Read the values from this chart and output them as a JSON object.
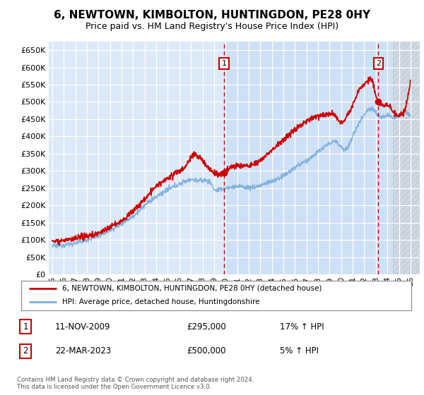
{
  "title": "6, NEWTOWN, KIMBOLTON, HUNTINGDON, PE28 0HY",
  "subtitle": "Price paid vs. HM Land Registry's House Price Index (HPI)",
  "ytick_values": [
    0,
    50000,
    100000,
    150000,
    200000,
    250000,
    300000,
    350000,
    400000,
    450000,
    500000,
    550000,
    600000,
    650000
  ],
  "ylim": [
    0,
    675000
  ],
  "xlim_start": 1994.7,
  "xlim_end": 2026.8,
  "xtick_years": [
    1995,
    1996,
    1997,
    1998,
    1999,
    2000,
    2001,
    2002,
    2003,
    2004,
    2005,
    2006,
    2007,
    2008,
    2009,
    2010,
    2011,
    2012,
    2013,
    2014,
    2015,
    2016,
    2017,
    2018,
    2019,
    2020,
    2021,
    2022,
    2023,
    2024,
    2025,
    2026
  ],
  "plot_bg": "#dce9f8",
  "plot_bg_highlight": "#cde0f5",
  "grid_color": "#ffffff",
  "sale1_date": 2009.87,
  "sale1_price": 295000,
  "sale1_label": "1",
  "sale2_date": 2023.22,
  "sale2_price": 500000,
  "sale2_label": "2",
  "sale_line_color": "#cc0000",
  "hpi_line_color": "#7aadda",
  "hatch_start": 2024.5,
  "legend_entry1": "6, NEWTOWN, KIMBOLTON, HUNTINGDON, PE28 0HY (detached house)",
  "legend_entry2": "HPI: Average price, detached house, Huntingdonshire",
  "annotation1_date": "11-NOV-2009",
  "annotation1_price": "£295,000",
  "annotation1_hpi": "17% ↑ HPI",
  "annotation2_date": "22-MAR-2023",
  "annotation2_price": "£500,000",
  "annotation2_hpi": "5% ↑ HPI",
  "footer": "Contains HM Land Registry data © Crown copyright and database right 2024.\nThis data is licensed under the Open Government Licence v3.0.",
  "title_fontsize": 11,
  "subtitle_fontsize": 9
}
